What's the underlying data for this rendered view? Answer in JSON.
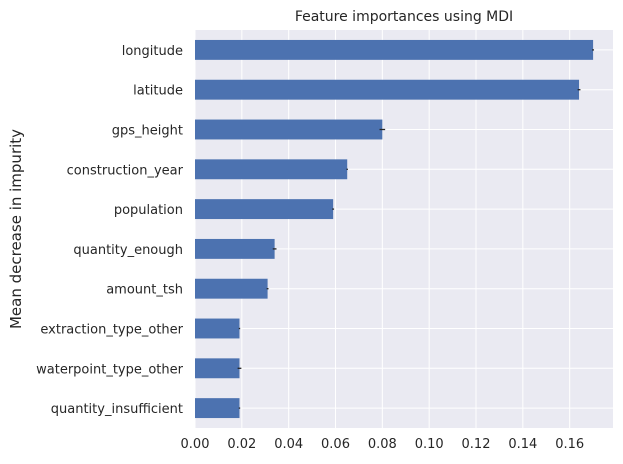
{
  "chart_data": {
    "type": "bar",
    "orientation": "horizontal",
    "title": "Feature importances using MDI",
    "xlabel": "",
    "ylabel": "Mean decrease in impurity",
    "categories": [
      "longitude",
      "latitude",
      "gps_height",
      "construction_year",
      "population",
      "quantity_enough",
      "amount_tsh",
      "extraction_type_other",
      "waterpoint_type_other",
      "quantity_insufficient"
    ],
    "values": [
      0.17,
      0.164,
      0.08,
      0.065,
      0.059,
      0.034,
      0.031,
      0.019,
      0.019,
      0.019
    ],
    "errors": [
      0.0004,
      0.0006,
      0.0012,
      0.0003,
      0.0004,
      0.0008,
      0.0004,
      0.0003,
      0.0008,
      0.0003
    ],
    "xlim": [
      0,
      0.1785
    ],
    "xticks": [
      0.0,
      0.02,
      0.04,
      0.06,
      0.08,
      0.1,
      0.12,
      0.14,
      0.16
    ],
    "xtick_labels": [
      "0.00",
      "0.02",
      "0.04",
      "0.06",
      "0.08",
      "0.10",
      "0.12",
      "0.14",
      "0.16"
    ],
    "grid": true,
    "legend": "none",
    "colors": {
      "bar": "#4C72B0",
      "background": "#EAEAF2",
      "grid": "#FFFFFF",
      "error": "#262626"
    }
  }
}
